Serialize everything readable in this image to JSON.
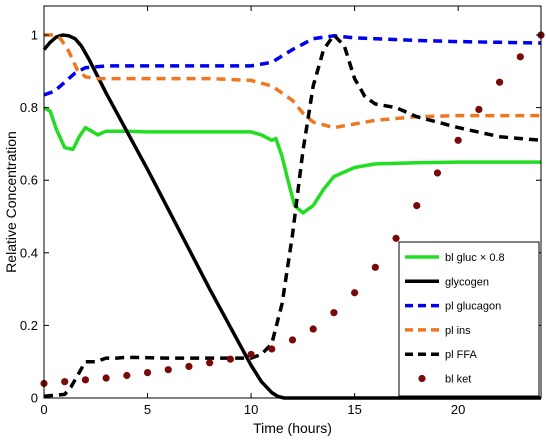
{
  "chart_data": {
    "type": "line",
    "xlabel": "Time (hours)",
    "ylabel": "Relative Concentration",
    "xlim": [
      0,
      24
    ],
    "ylim": [
      0,
      1.08
    ],
    "xticks": [
      0,
      5,
      10,
      15,
      20
    ],
    "yticks": [
      0,
      0.2,
      0.4,
      0.6,
      0.8,
      1
    ],
    "xtick_labels": [
      "0",
      "5",
      "10",
      "15",
      "20"
    ],
    "ytick_labels": [
      "0",
      "0.2",
      "0.4",
      "0.6",
      "0.8",
      "1"
    ],
    "grid": false,
    "legend_position": "bottom-right",
    "series": [
      {
        "name": "bl gluc × 0.8",
        "color": "#22dd22",
        "style": "solid",
        "x": [
          0,
          0.3,
          0.6,
          1.0,
          1.4,
          1.7,
          2.0,
          2.3,
          2.6,
          3.0,
          3.5,
          4,
          5,
          6,
          8,
          10,
          10.5,
          11.0,
          11.2,
          11.5,
          11.8,
          12.1,
          12.5,
          13.0,
          13.5,
          14,
          15,
          16,
          18,
          20,
          22,
          24
        ],
        "y": [
          0.8,
          0.79,
          0.74,
          0.69,
          0.685,
          0.72,
          0.745,
          0.735,
          0.725,
          0.735,
          0.735,
          0.735,
          0.733,
          0.733,
          0.733,
          0.733,
          0.725,
          0.71,
          0.715,
          0.665,
          0.595,
          0.53,
          0.51,
          0.53,
          0.575,
          0.61,
          0.635,
          0.645,
          0.648,
          0.65,
          0.65,
          0.65
        ]
      },
      {
        "name": "glycogen",
        "color": "#000000",
        "style": "solid",
        "x": [
          0,
          0.3,
          0.6,
          0.9,
          1.2,
          1.5,
          1.8,
          2.2,
          3,
          4,
          5,
          6,
          7,
          8,
          9,
          10,
          10.5,
          11,
          11.3,
          11.6,
          11.8,
          12,
          13,
          15,
          18,
          20,
          24
        ],
        "y": [
          0.96,
          0.98,
          0.995,
          1.0,
          0.998,
          0.99,
          0.97,
          0.93,
          0.84,
          0.735,
          0.63,
          0.52,
          0.41,
          0.3,
          0.195,
          0.09,
          0.045,
          0.015,
          0.004,
          0.0,
          0.0,
          0.0,
          0.0,
          0.0,
          0.0,
          0.0,
          0.0
        ]
      },
      {
        "name": "pl glucagon",
        "color": "#0000ee",
        "style": "dashed",
        "x": [
          0,
          0.5,
          1.0,
          1.5,
          2.0,
          3,
          5,
          8,
          10,
          11,
          12,
          13,
          14,
          15,
          16,
          18,
          20,
          22,
          24
        ],
        "y": [
          0.835,
          0.845,
          0.87,
          0.895,
          0.91,
          0.915,
          0.915,
          0.915,
          0.915,
          0.925,
          0.96,
          0.99,
          0.998,
          0.992,
          0.99,
          0.985,
          0.982,
          0.98,
          0.978
        ]
      },
      {
        "name": "pl ins",
        "color": "#ee7722",
        "style": "dashed",
        "x": [
          0,
          0.5,
          0.8,
          1.2,
          1.6,
          2.0,
          2.5,
          3,
          5,
          8,
          10,
          11,
          12,
          12.5,
          13,
          14,
          15,
          16,
          18,
          20,
          22,
          24
        ],
        "y": [
          1.0,
          1.0,
          0.99,
          0.955,
          0.905,
          0.885,
          0.88,
          0.88,
          0.88,
          0.88,
          0.875,
          0.86,
          0.82,
          0.785,
          0.76,
          0.745,
          0.755,
          0.765,
          0.775,
          0.778,
          0.778,
          0.778
        ]
      },
      {
        "name": "pl FFA",
        "color": "#000000",
        "style": "dashed",
        "x": [
          0,
          1,
          1.3,
          1.7,
          2.0,
          2.5,
          3,
          3.5,
          4,
          6,
          8,
          10,
          10.5,
          11,
          11.5,
          12,
          12.5,
          13,
          13.5,
          14,
          14.5,
          15,
          15.5,
          16,
          17,
          18,
          20,
          22,
          24
        ],
        "y": [
          0.005,
          0.01,
          0.03,
          0.07,
          0.1,
          0.1,
          0.11,
          0.11,
          0.112,
          0.11,
          0.11,
          0.11,
          0.12,
          0.15,
          0.26,
          0.45,
          0.68,
          0.86,
          0.96,
          1.0,
          0.97,
          0.88,
          0.83,
          0.81,
          0.8,
          0.775,
          0.745,
          0.72,
          0.71
        ]
      },
      {
        "name": "bl ket",
        "color": "#7a0a0a",
        "style": "dotted",
        "x": [
          0,
          1,
          2,
          3,
          4,
          5,
          6,
          7,
          8,
          9,
          10,
          11,
          12,
          13,
          14,
          15,
          16,
          17,
          18,
          19,
          20,
          21,
          22,
          23,
          24
        ],
        "y": [
          0.04,
          0.045,
          0.05,
          0.055,
          0.062,
          0.07,
          0.078,
          0.087,
          0.097,
          0.107,
          0.12,
          0.135,
          0.16,
          0.19,
          0.235,
          0.29,
          0.36,
          0.44,
          0.53,
          0.62,
          0.71,
          0.795,
          0.87,
          0.94,
          1.0
        ]
      }
    ]
  }
}
